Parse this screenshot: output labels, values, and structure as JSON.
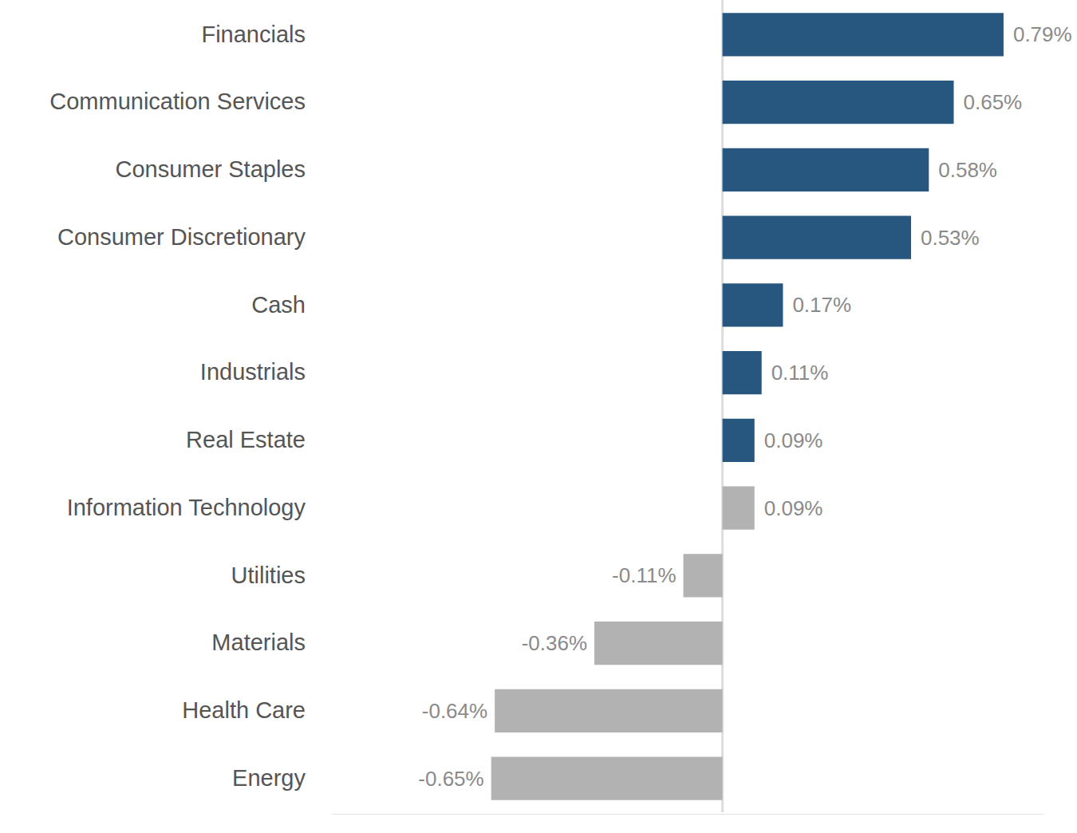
{
  "chart_data": {
    "type": "bar",
    "orientation": "horizontal",
    "categories": [
      "Financials",
      "Communication Services",
      "Consumer Staples",
      "Consumer Discretionary",
      "Cash",
      "Industrials",
      "Real Estate",
      "Information Technology",
      "Utilities",
      "Materials",
      "Health Care",
      "Energy"
    ],
    "values": [
      0.79,
      0.65,
      0.58,
      0.53,
      0.17,
      0.11,
      0.09,
      0.09,
      -0.11,
      -0.36,
      -0.64,
      -0.65
    ],
    "value_labels": [
      "0.79%",
      "0.65%",
      "0.58%",
      "0.53%",
      "0.17%",
      "0.11%",
      "0.09%",
      "0.09%",
      "-0.11%",
      "-0.36%",
      "-0.64%",
      "-0.65%"
    ],
    "colors": [
      "#27567f",
      "#27567f",
      "#27567f",
      "#27567f",
      "#27567f",
      "#27567f",
      "#27567f",
      "#b2b2b2",
      "#b2b2b2",
      "#b2b2b2",
      "#b2b2b2",
      "#b2b2b2"
    ],
    "xlim": [
      -1.1,
      0.9
    ],
    "xticks": [
      0
    ],
    "tick_labels": "y",
    "data_labels": true
  }
}
